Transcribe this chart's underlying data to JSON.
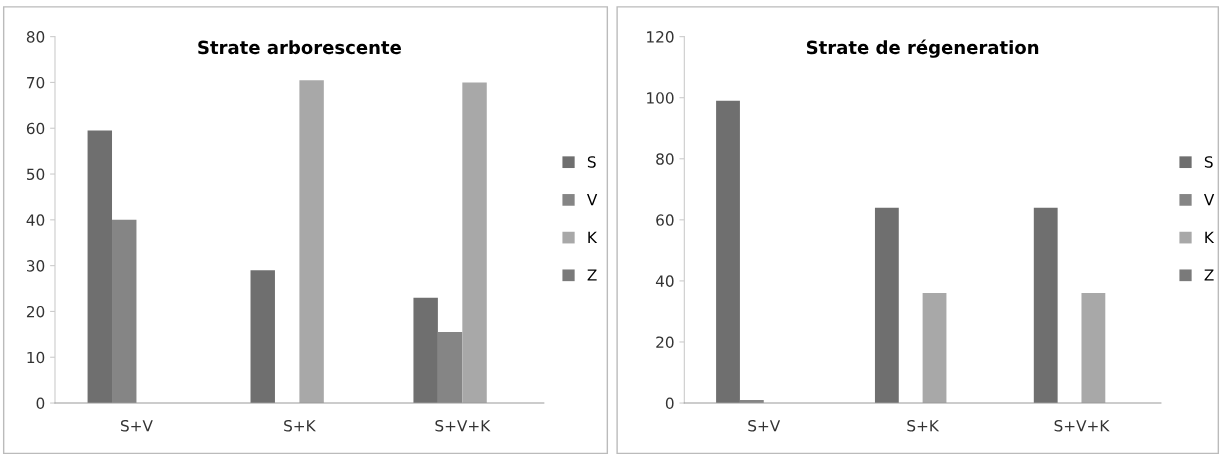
{
  "chart_data": [
    {
      "type": "bar",
      "title": "Strate arborescente",
      "categories": [
        "S+V",
        "S+K",
        "S+V+K"
      ],
      "ylim": [
        0,
        80
      ],
      "yticks": [
        0,
        10,
        20,
        30,
        40,
        50,
        60,
        70,
        80
      ],
      "grid": false,
      "legend": "right",
      "series": [
        {
          "name": "S",
          "color": "#6f6f6f",
          "values": [
            59.5,
            29,
            23
          ]
        },
        {
          "name": "V",
          "color": "#858585",
          "values": [
            40,
            0,
            15.5
          ]
        },
        {
          "name": "K",
          "color": "#a8a8a8",
          "values": [
            0,
            70.5,
            70
          ]
        },
        {
          "name": "Z",
          "color": "#7a7a7a",
          "values": [
            0,
            0,
            0
          ]
        }
      ]
    },
    {
      "type": "bar",
      "title": "Strate de régeneration",
      "categories": [
        "S+V",
        "S+K",
        "S+V+K"
      ],
      "ylim": [
        0,
        120
      ],
      "yticks": [
        0,
        20,
        40,
        60,
        80,
        100,
        120
      ],
      "grid": false,
      "legend": "right",
      "series": [
        {
          "name": "S",
          "color": "#6f6f6f",
          "values": [
            99,
            64,
            64
          ]
        },
        {
          "name": "V",
          "color": "#858585",
          "values": [
            1,
            0,
            0
          ]
        },
        {
          "name": "K",
          "color": "#a8a8a8",
          "values": [
            0,
            36,
            36
          ]
        },
        {
          "name": "Z",
          "color": "#7a7a7a",
          "values": [
            0,
            0,
            0
          ]
        }
      ]
    }
  ]
}
